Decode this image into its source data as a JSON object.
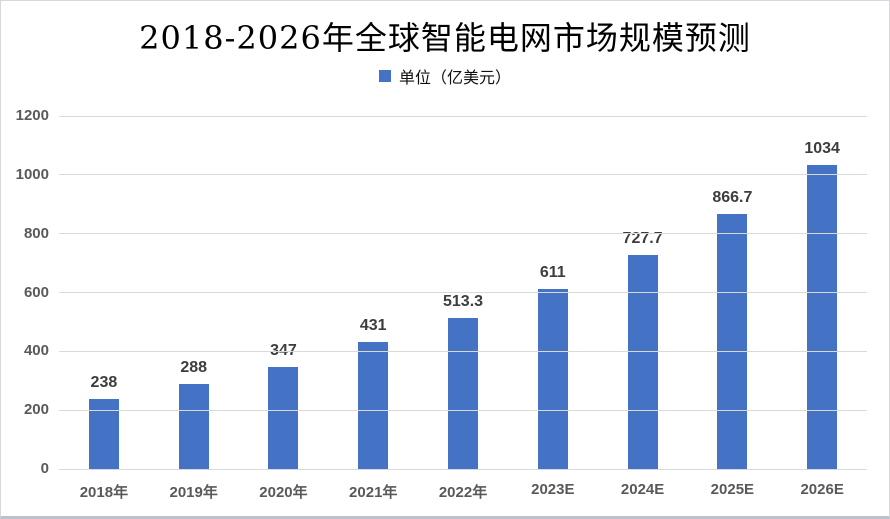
{
  "chart_data": {
    "type": "bar",
    "title": "2018-2026年全球智能电网市场规模预测",
    "legend_label": "单位（亿美元）",
    "legend_position": "top",
    "categories": [
      "2018年",
      "2019年",
      "2020年",
      "2021年",
      "2022年",
      "2023E",
      "2024E",
      "2025E",
      "2026E"
    ],
    "values": [
      238,
      288,
      347,
      431,
      513.3,
      611,
      727.7,
      866.7,
      1034
    ],
    "value_labels": [
      "238",
      "288",
      "347",
      "431",
      "513.3",
      "611",
      "727.7",
      "866.7",
      "1034"
    ],
    "xlabel": "",
    "ylabel": "",
    "ylim": [
      0,
      1200
    ],
    "y_ticks": [
      0,
      200,
      400,
      600,
      800,
      1000,
      1200
    ],
    "grid": true,
    "colors": {
      "bar": "#4472C4",
      "gridline": "#D9D9D9",
      "tick_label": "#595959",
      "data_label": "#3d3d3d",
      "title": "#000000"
    }
  }
}
